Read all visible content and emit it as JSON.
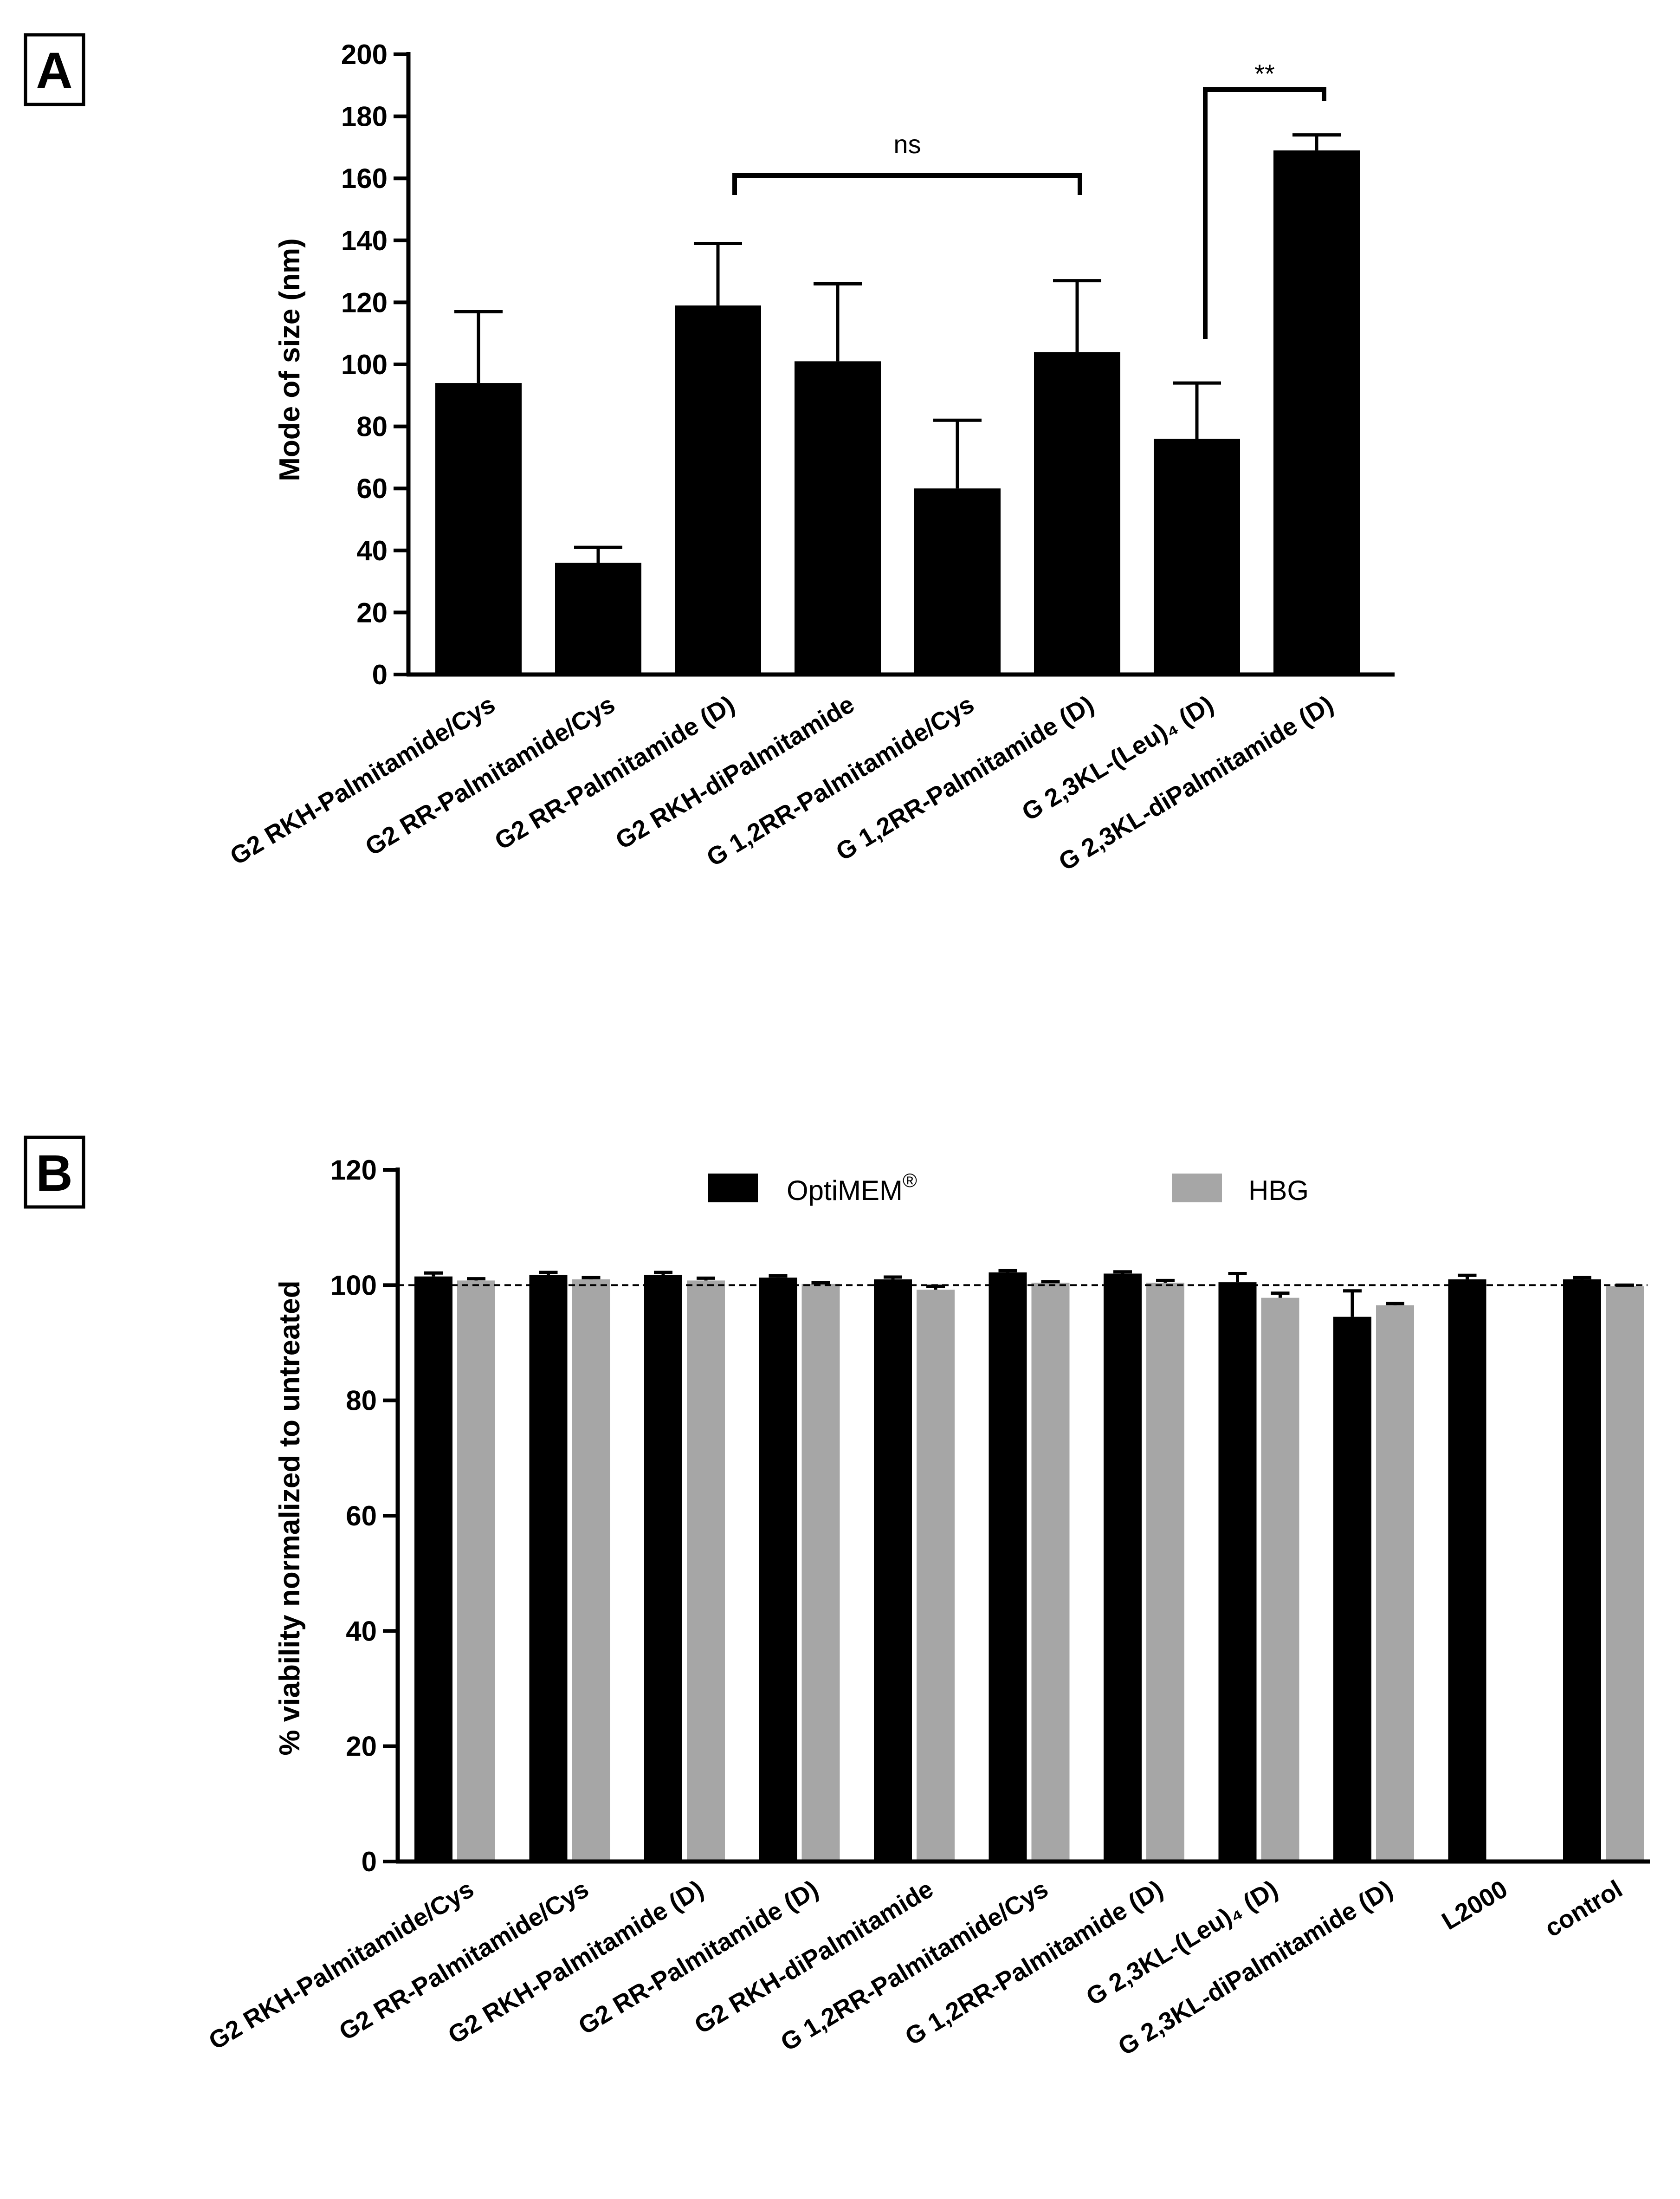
{
  "chart_data": [
    {
      "panel": "A",
      "type": "bar",
      "title": "",
      "xlabel": "",
      "ylabel": "Mode of size (nm)",
      "ylim": [
        0,
        200
      ],
      "yticks": [
        "0",
        "20",
        "40",
        "60",
        "80",
        "100",
        "120",
        "140",
        "160",
        "180",
        "200"
      ],
      "categories": [
        "G2 RKH-Palmitamide/Cys",
        "G2 RR-Palmitamide/Cys",
        "G2 RR-Palmitamide (D)",
        "G2 RKH-diPalmitamide",
        "G 1,2RR-Palmitamide/Cys",
        "G 1,2RR-Palmitamide (D)",
        "G 2,3KL-(Leu)₄ (D)",
        "G 2,3KL-diPalmitamide (D)"
      ],
      "values": [
        94,
        36,
        119,
        101,
        60,
        104,
        76,
        169
      ],
      "errors": [
        23,
        5,
        20,
        25,
        22,
        23,
        18,
        5
      ],
      "bar_color": "#000000",
      "annotations": [
        {
          "from": 2,
          "to": 5,
          "text": "ns"
        },
        {
          "from": 6,
          "to": 7,
          "text": "**"
        }
      ]
    },
    {
      "panel": "B",
      "type": "bar",
      "title": "",
      "xlabel": "",
      "ylabel": "% viability normalized to untreated",
      "ylim": [
        0,
        120
      ],
      "yticks": [
        "0",
        "20",
        "40",
        "60",
        "80",
        "100",
        "120"
      ],
      "reference_line": 100,
      "categories": [
        "G2 RKH-Palmitamide/Cys",
        "G2 RR-Palmitamide/Cys",
        "G2 RKH-Palmitamide (D)",
        "G2 RR-Palmitamide (D)",
        "G2 RKH-diPalmitamide",
        "G 1,2RR-Palmitamide/Cys",
        "G 1,2RR-Palmitamide (D)",
        "G 2,3KL-(Leu)₄ (D)",
        "G 2,3KL-diPalmitamide (D)",
        "L2000",
        "control"
      ],
      "series": [
        {
          "name": "OptiMEM®",
          "color": "#000000",
          "values": [
            101.5,
            101.8,
            101.8,
            101.3,
            101,
            102.2,
            102,
            100.5,
            94.5,
            101,
            101
          ],
          "errors": [
            0.6,
            0.4,
            0.4,
            0.3,
            0.4,
            0.3,
            0.3,
            1.5,
            4.5,
            0.7,
            0.3
          ]
        },
        {
          "name": "HBG",
          "color": "#a6a6a6",
          "values": [
            100.8,
            101,
            100.8,
            100.2,
            99.2,
            100.4,
            100.4,
            97.8,
            96.5,
            null,
            99.8
          ],
          "errors": [
            0.3,
            0.3,
            0.4,
            0.2,
            0.6,
            0.2,
            0.4,
            0.8,
            0.3,
            null,
            0.2
          ]
        }
      ],
      "legend": [
        "OptiMEM",
        "HBG"
      ],
      "legend_superscript": "®"
    }
  ]
}
